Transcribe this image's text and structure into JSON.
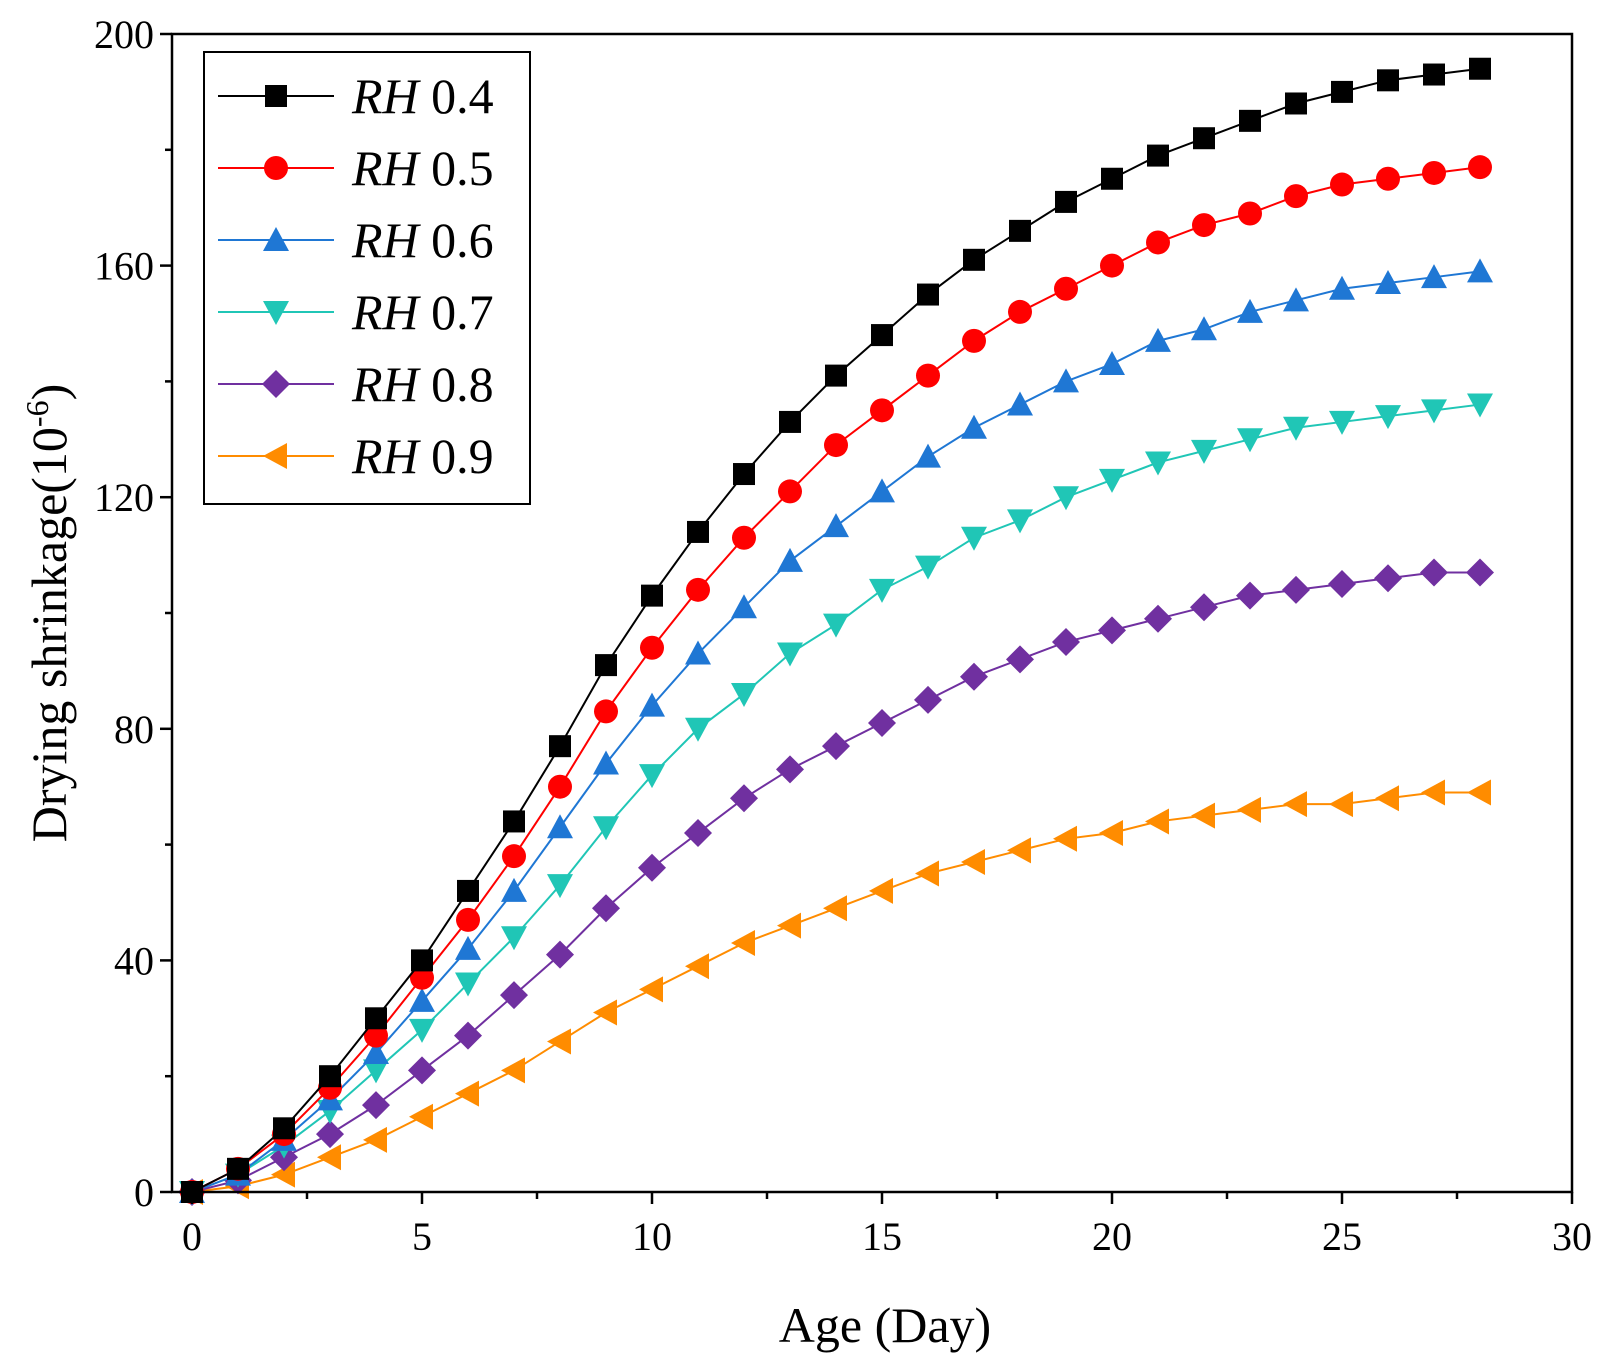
{
  "chart_data": {
    "type": "line",
    "title": "",
    "xlabel": "Age (Day)",
    "ylabel_main": "Drying shrinkage(10",
    "ylabel_exp": "-6",
    "ylabel_close": ")",
    "xlim": [
      0,
      30
    ],
    "ylim": [
      0,
      200
    ],
    "xticks": [
      0,
      5,
      10,
      15,
      20,
      25,
      30
    ],
    "yticks": [
      0,
      40,
      80,
      120,
      160,
      200
    ],
    "grid": false,
    "legend_position": "top-left",
    "x": [
      0,
      1,
      2,
      3,
      4,
      5,
      6,
      7,
      8,
      9,
      10,
      11,
      12,
      13,
      14,
      15,
      16,
      17,
      18,
      19,
      20,
      21,
      22,
      23,
      24,
      25,
      26,
      27,
      28
    ],
    "series": [
      {
        "name": "0.4",
        "prefix": "RH",
        "color": "#000000",
        "marker": "square",
        "values": [
          0,
          4,
          11,
          20,
          30,
          40,
          52,
          64,
          77,
          91,
          103,
          114,
          124,
          133,
          141,
          148,
          155,
          161,
          166,
          171,
          175,
          179,
          182,
          185,
          188,
          190,
          192,
          193,
          194
        ]
      },
      {
        "name": "0.5",
        "prefix": "RH",
        "color": "#ff0000",
        "marker": "circle",
        "values": [
          0,
          4,
          10,
          18,
          27,
          37,
          47,
          58,
          70,
          83,
          94,
          104,
          113,
          121,
          129,
          135,
          141,
          147,
          152,
          156,
          160,
          164,
          167,
          169,
          172,
          174,
          175,
          176,
          177
        ]
      },
      {
        "name": "0.6",
        "prefix": "RH",
        "color": "#1f77d4",
        "marker": "triangle-up",
        "values": [
          0,
          3,
          9,
          16,
          24,
          33,
          42,
          52,
          63,
          74,
          84,
          93,
          101,
          109,
          115,
          121,
          127,
          132,
          136,
          140,
          143,
          147,
          149,
          152,
          154,
          156,
          157,
          158,
          159
        ]
      },
      {
        "name": "0.7",
        "prefix": "RH",
        "color": "#20c6b6",
        "marker": "triangle-down",
        "values": [
          0,
          3,
          8,
          14,
          21,
          28,
          36,
          44,
          53,
          63,
          72,
          80,
          86,
          93,
          98,
          104,
          108,
          113,
          116,
          120,
          123,
          126,
          128,
          130,
          132,
          133,
          134,
          135,
          136
        ]
      },
      {
        "name": "0.8",
        "prefix": "RH",
        "color": "#7030a0",
        "marker": "diamond",
        "values": [
          0,
          2,
          6,
          10,
          15,
          21,
          27,
          34,
          41,
          49,
          56,
          62,
          68,
          73,
          77,
          81,
          85,
          89,
          92,
          95,
          97,
          99,
          101,
          103,
          104,
          105,
          106,
          107,
          107
        ]
      },
      {
        "name": "0.9",
        "prefix": "RH",
        "color": "#ff8c00",
        "marker": "triangle-left",
        "values": [
          0,
          1,
          3,
          6,
          9,
          13,
          17,
          21,
          26,
          31,
          35,
          39,
          43,
          46,
          49,
          52,
          55,
          57,
          59,
          61,
          62,
          64,
          65,
          66,
          67,
          67,
          68,
          69,
          69
        ]
      }
    ]
  }
}
